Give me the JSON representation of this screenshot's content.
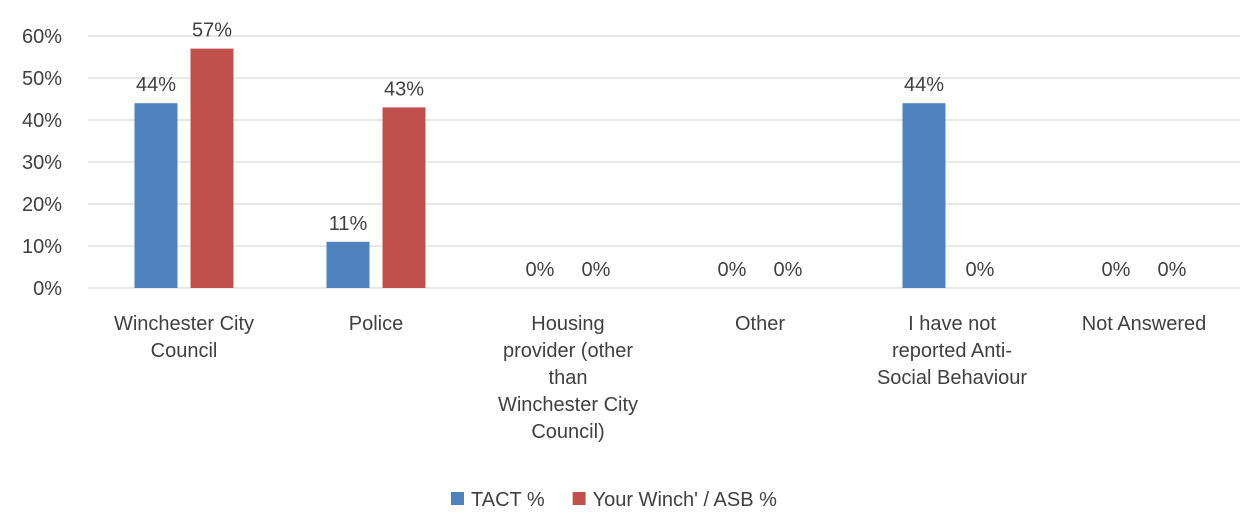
{
  "chart_data": {
    "type": "bar",
    "categories": [
      [
        "Winchester City",
        "Council"
      ],
      [
        "Police"
      ],
      [
        "Housing",
        "provider (other",
        "than",
        "Winchester City",
        "Council)"
      ],
      [
        "Other"
      ],
      [
        "I have not",
        "reported Anti-",
        "Social Behaviour"
      ],
      [
        "Not Answered"
      ]
    ],
    "series": [
      {
        "name": "TACT %",
        "color": "#4F81BD",
        "values": [
          44,
          11,
          0,
          0,
          44,
          0
        ],
        "labels": [
          "44%",
          "11%",
          "0%",
          "0%",
          "44%",
          "0%"
        ]
      },
      {
        "name": "Your Winch' / ASB %",
        "color": "#C0504D",
        "values": [
          57,
          43,
          0,
          0,
          0,
          0
        ],
        "labels": [
          "57%",
          "43%",
          "0%",
          "0%",
          "0%",
          "0%"
        ]
      }
    ],
    "yticks": [
      0,
      10,
      20,
      30,
      40,
      50,
      60
    ],
    "ytick_labels": [
      "0%",
      "10%",
      "20%",
      "30%",
      "40%",
      "50%",
      "60%"
    ],
    "ylim": [
      0,
      60
    ],
    "grid": true,
    "legend_position": "bottom"
  }
}
